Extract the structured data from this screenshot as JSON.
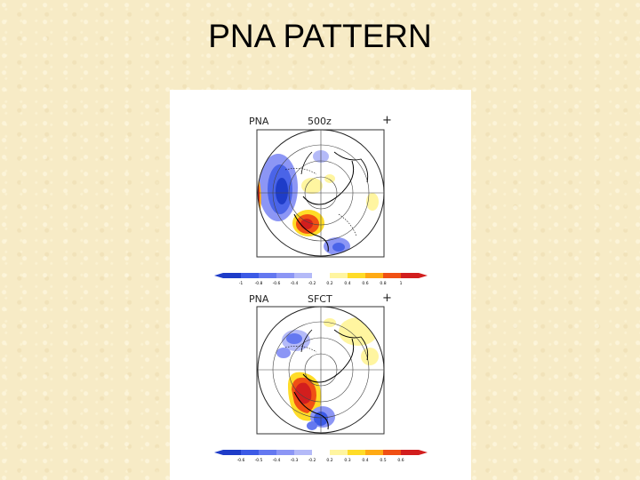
{
  "slide": {
    "title": "PNA PATTERN"
  },
  "panels": [
    {
      "left_label": "PNA",
      "center_label": "500z",
      "marker": "+",
      "colorbar_ticks": [
        "-1",
        "-0.8",
        "-0.6",
        "-0.4",
        "-0.2",
        "0.2",
        "0.4",
        "0.6",
        "0.8",
        "1"
      ]
    },
    {
      "left_label": "PNA",
      "center_label": "SFCT",
      "marker": "+",
      "colorbar_ticks": [
        "-0.6",
        "-0.5",
        "-0.4",
        "-0.3",
        "-0.2",
        "0.2",
        "0.3",
        "0.4",
        "0.5",
        "0.6"
      ]
    }
  ],
  "colorbar": {
    "colors": [
      "#1e3cc8",
      "#3c5ae6",
      "#6478f0",
      "#8c96f5",
      "#b4baf8",
      "#ffffff",
      "#fff5a0",
      "#ffdc28",
      "#ffaa14",
      "#f05014",
      "#d21e1e"
    ]
  }
}
